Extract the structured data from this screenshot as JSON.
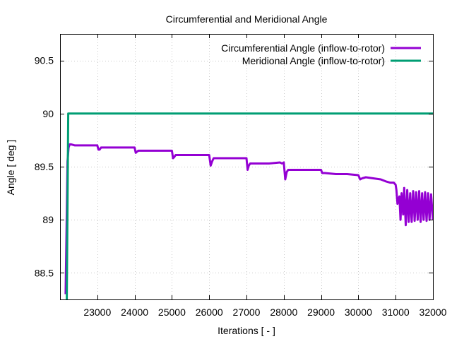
{
  "chart_data": {
    "type": "line",
    "title": "Circumferential and Meridional Angle",
    "xlabel": "Iterations [ - ]",
    "ylabel": "Angle [ deg ]",
    "xlim": [
      22000,
      32000
    ],
    "ylim": [
      88.25,
      90.75
    ],
    "xticks": [
      23000,
      24000,
      25000,
      26000,
      27000,
      28000,
      29000,
      30000,
      31000,
      32000
    ],
    "yticks": [
      88.5,
      89,
      89.5,
      90,
      90.5
    ],
    "ytick_labels": [
      "88.5",
      "89",
      "89.5",
      "90",
      "90.5"
    ],
    "grid": true,
    "legend_position": "top-right",
    "series": [
      {
        "name": "Circumferential Angle (inflow-to-rotor)",
        "color": "#9400d3",
        "x": [
          22150,
          22200,
          22230,
          22260,
          22300,
          22400,
          22500,
          22700,
          23000,
          23030,
          23060,
          23100,
          23300,
          23600,
          24000,
          24030,
          24060,
          24100,
          24400,
          24700,
          25000,
          25030,
          25060,
          25100,
          25400,
          25700,
          26000,
          26040,
          26080,
          26120,
          26400,
          26700,
          27000,
          27030,
          27060,
          27100,
          27300,
          27600,
          27900,
          27950,
          28000,
          28040,
          28080,
          28120,
          28400,
          28700,
          29000,
          29030,
          29060,
          29100,
          29400,
          29700,
          30000,
          30050,
          30100,
          30200,
          30400,
          30600,
          30750,
          30850,
          30950,
          31000,
          31020,
          31050,
          31100,
          31130,
          31160,
          31200,
          31230,
          31270,
          31310,
          31350,
          31390,
          31430,
          31470,
          31510,
          31550,
          31590,
          31630,
          31670,
          31710,
          31750,
          31790,
          31830,
          31870,
          31910,
          31950,
          32000
        ],
        "y": [
          88.3,
          89.55,
          89.68,
          89.71,
          89.71,
          89.7,
          89.7,
          89.7,
          89.7,
          89.66,
          89.66,
          89.68,
          89.68,
          89.68,
          89.68,
          89.63,
          89.64,
          89.65,
          89.65,
          89.65,
          89.65,
          89.58,
          89.59,
          89.61,
          89.61,
          89.61,
          89.61,
          89.51,
          89.55,
          89.58,
          89.58,
          89.58,
          89.58,
          89.47,
          89.51,
          89.53,
          89.53,
          89.53,
          89.54,
          89.53,
          89.54,
          89.38,
          89.45,
          89.47,
          89.47,
          89.47,
          89.47,
          89.44,
          89.44,
          89.44,
          89.43,
          89.43,
          89.42,
          89.38,
          89.39,
          89.4,
          89.39,
          89.38,
          89.36,
          89.35,
          89.35,
          89.33,
          89.28,
          89.15,
          89.22,
          89.0,
          89.25,
          89.05,
          89.3,
          88.95,
          89.28,
          88.98,
          89.25,
          88.98,
          89.27,
          88.99,
          89.26,
          89.0,
          89.27,
          88.98,
          89.25,
          89.0,
          89.26,
          88.99,
          89.25,
          89.0,
          89.24,
          89.0
        ]
      },
      {
        "name": "Meridional Angle (inflow-to-rotor)",
        "color": "#009e73",
        "x": [
          22180,
          22220,
          32000
        ],
        "y": [
          88.2,
          90.0,
          90.0
        ]
      }
    ]
  }
}
